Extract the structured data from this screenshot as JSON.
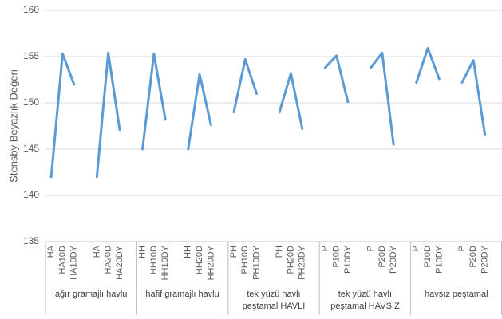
{
  "chart_data": {
    "type": "line",
    "y_label": "Stensby Beyazlık Değeri",
    "categories": [
      "HA",
      "HA10D",
      "HA10DY",
      null,
      "HA",
      "HA20D",
      "HA20DY",
      null,
      "HH",
      "HH10D",
      "HH10DY",
      null,
      "HH",
      "HH20D",
      "HH20DY",
      null,
      "PH",
      "PH10D",
      "PH10DY",
      null,
      "PH",
      "PH20D",
      "PH20DY",
      null,
      "P",
      "P10D",
      "P10DY",
      null,
      "P",
      "P20D",
      "P20DY",
      null,
      "P",
      "P10D",
      "P10DY",
      null,
      "P",
      "P20D",
      "P20DY",
      null
    ],
    "groups": [
      "ağır gramajlı havlu",
      "hafif gramajlı havlu",
      "tek yüzü havlı peştamal HAVLI",
      "tek yüzü havlı peştamal HAVSIZ",
      "havsız peştamal"
    ],
    "series": [
      {
        "color": "#5b9bd5",
        "values": [
          142,
          155.3,
          152,
          null,
          142,
          155.4,
          147.1,
          null,
          145,
          155.3,
          148.2,
          null,
          145,
          153.1,
          147.6,
          null,
          149,
          154.7,
          151,
          null,
          149,
          153.2,
          147.2,
          null,
          153.8,
          155.1,
          150.1,
          null,
          153.8,
          155.4,
          145.5,
          null,
          152.2,
          155.9,
          152.6,
          null,
          152.2,
          154.6,
          146.6,
          null
        ]
      }
    ],
    "ylim": [
      135,
      160
    ],
    "yticks": [
      135,
      140,
      145,
      150,
      155,
      160
    ],
    "grid": true
  }
}
